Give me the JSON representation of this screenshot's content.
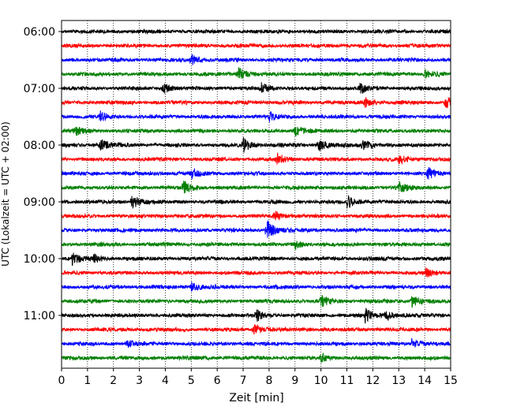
{
  "chart_data": {
    "type": "line",
    "title": "",
    "xlabel": "Zeit  [min]",
    "ylabel": "UTC (Lokalzeit = UTC + 02:00)",
    "xlim": [
      0,
      15
    ],
    "xticks": [
      0,
      1,
      2,
      3,
      4,
      5,
      6,
      7,
      8,
      9,
      10,
      11,
      12,
      13,
      14,
      15
    ],
    "ytick_labels": [
      "06:00",
      "07:00",
      "08:00",
      "09:00",
      "10:00",
      "11:00"
    ],
    "grid": "vertical dotted at each minute",
    "legend": "none",
    "colors_cycle": [
      "#000000",
      "#ff0000",
      "#0000ff",
      "#007f00"
    ],
    "traces": [
      {
        "start": "06:00",
        "color": "#000000",
        "events": []
      },
      {
        "start": "06:15",
        "color": "#ff0000",
        "events": []
      },
      {
        "start": "06:30",
        "color": "#0000ff",
        "events": [
          {
            "x": 5.0,
            "amp": 0.5
          }
        ]
      },
      {
        "start": "06:45",
        "color": "#007f00",
        "events": [
          {
            "x": 6.8,
            "amp": 0.6
          },
          {
            "x": 14.0,
            "amp": 0.4
          }
        ]
      },
      {
        "start": "07:00",
        "color": "#000000",
        "events": [
          {
            "x": 3.9,
            "amp": 0.5
          },
          {
            "x": 7.7,
            "amp": 0.5
          },
          {
            "x": 11.5,
            "amp": 0.4
          }
        ]
      },
      {
        "start": "07:15",
        "color": "#ff0000",
        "events": [
          {
            "x": 11.7,
            "amp": 0.5
          },
          {
            "x": 14.8,
            "amp": 0.6
          }
        ]
      },
      {
        "start": "07:30",
        "color": "#0000ff",
        "events": [
          {
            "x": 1.5,
            "amp": 0.4
          },
          {
            "x": 8.0,
            "amp": 0.4
          }
        ]
      },
      {
        "start": "07:45",
        "color": "#007f00",
        "events": [
          {
            "x": 0.5,
            "amp": 0.4
          },
          {
            "x": 9.0,
            "amp": 0.4
          }
        ]
      },
      {
        "start": "08:00",
        "color": "#000000",
        "events": [
          {
            "x": 1.5,
            "amp": 0.5
          },
          {
            "x": 7.0,
            "amp": 0.6
          },
          {
            "x": 9.9,
            "amp": 0.6
          },
          {
            "x": 11.6,
            "amp": 0.5
          }
        ]
      },
      {
        "start": "08:15",
        "color": "#ff0000",
        "events": [
          {
            "x": 8.3,
            "amp": 0.5
          },
          {
            "x": 13.0,
            "amp": 0.4
          }
        ]
      },
      {
        "start": "08:30",
        "color": "#0000ff",
        "events": [
          {
            "x": 5.0,
            "amp": 0.4
          },
          {
            "x": 14.1,
            "amp": 0.5
          }
        ]
      },
      {
        "start": "08:45",
        "color": "#007f00",
        "events": [
          {
            "x": 4.7,
            "amp": 0.6
          },
          {
            "x": 13.0,
            "amp": 0.5
          }
        ]
      },
      {
        "start": "09:00",
        "color": "#000000",
        "events": [
          {
            "x": 2.7,
            "amp": 0.7
          },
          {
            "x": 11.0,
            "amp": 0.6
          }
        ]
      },
      {
        "start": "09:15",
        "color": "#ff0000",
        "events": [
          {
            "x": 8.2,
            "amp": 0.4
          }
        ]
      },
      {
        "start": "09:30",
        "color": "#0000ff",
        "events": [
          {
            "x": 7.9,
            "amp": 1.0
          }
        ]
      },
      {
        "start": "09:45",
        "color": "#007f00",
        "events": [
          {
            "x": 9.0,
            "amp": 0.4
          }
        ]
      },
      {
        "start": "10:00",
        "color": "#000000",
        "events": [
          {
            "x": 0.4,
            "amp": 0.6
          },
          {
            "x": 1.2,
            "amp": 0.4
          }
        ]
      },
      {
        "start": "10:15",
        "color": "#ff0000",
        "events": [
          {
            "x": 14.0,
            "amp": 0.4
          }
        ]
      },
      {
        "start": "10:30",
        "color": "#0000ff",
        "events": [
          {
            "x": 5.0,
            "amp": 0.4
          }
        ]
      },
      {
        "start": "10:45",
        "color": "#007f00",
        "events": [
          {
            "x": 10.0,
            "amp": 0.6
          },
          {
            "x": 13.5,
            "amp": 0.5
          }
        ]
      },
      {
        "start": "11:00",
        "color": "#000000",
        "events": [
          {
            "x": 7.5,
            "amp": 0.5
          },
          {
            "x": 11.7,
            "amp": 0.6
          },
          {
            "x": 12.5,
            "amp": 0.5
          }
        ]
      },
      {
        "start": "11:15",
        "color": "#ff0000",
        "events": [
          {
            "x": 7.4,
            "amp": 0.5
          }
        ]
      },
      {
        "start": "11:30",
        "color": "#0000ff",
        "events": [
          {
            "x": 2.5,
            "amp": 0.4
          },
          {
            "x": 13.5,
            "amp": 0.4
          }
        ]
      },
      {
        "start": "11:45",
        "color": "#007f00",
        "events": [
          {
            "x": 10.0,
            "amp": 0.4
          }
        ]
      }
    ]
  }
}
